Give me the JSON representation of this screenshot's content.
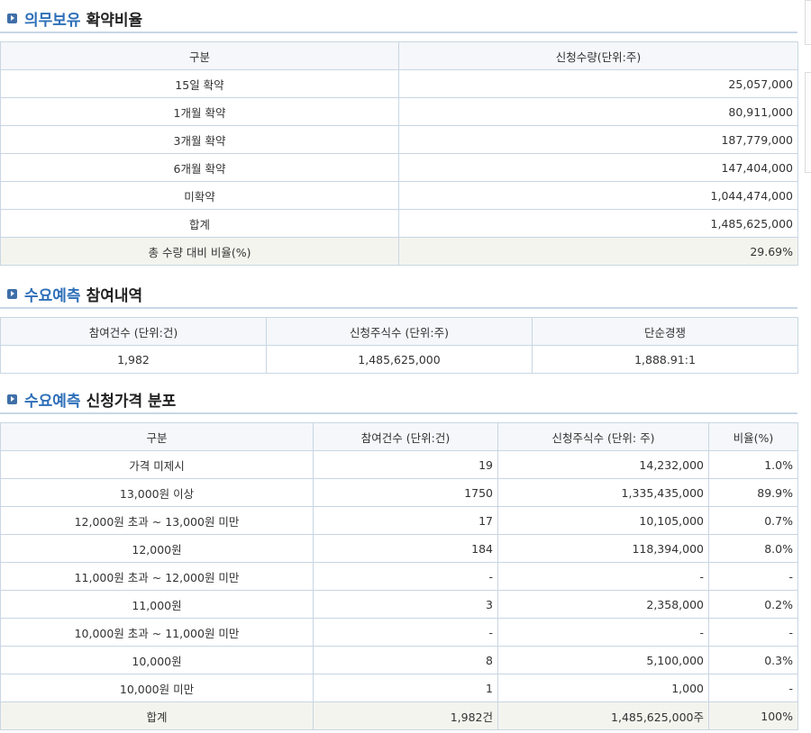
{
  "section1": {
    "title_highlight": "의무보유",
    "title_rest": "확약비율",
    "headers": [
      "구분",
      "신청수량(단위:주)"
    ],
    "rows": [
      {
        "label": "15일 확약",
        "value": "25,057,000"
      },
      {
        "label": "1개월 확약",
        "value": "80,911,000"
      },
      {
        "label": "3개월 확약",
        "value": "187,779,000"
      },
      {
        "label": "6개월 확약",
        "value": "147,404,000"
      },
      {
        "label": "미확약",
        "value": "1,044,474,000"
      },
      {
        "label": "합계",
        "value": "1,485,625,000"
      }
    ],
    "ratio_label": "총 수량 대비 비율(%)",
    "ratio_value": "29.69%"
  },
  "section2": {
    "title_highlight": "수요예측",
    "title_rest": "참여내역",
    "headers": [
      "참여건수 (단위:건)",
      "신청주식수 (단위:주)",
      "단순경쟁"
    ],
    "values": [
      "1,982",
      "1,485,625,000",
      "1,888.91:1"
    ]
  },
  "section3": {
    "title_highlight": "수요예측",
    "title_rest": "신청가격 분포",
    "headers": [
      "구분",
      "참여건수 (단위:건)",
      "신청주식수 (단위: 주)",
      "비율(%)"
    ],
    "rows": [
      {
        "label": "가격 미제시",
        "count": "19",
        "shares": "14,232,000",
        "ratio": "1.0%"
      },
      {
        "label": "13,000원 이상",
        "count": "1750",
        "shares": "1,335,435,000",
        "ratio": "89.9%"
      },
      {
        "label": "12,000원 초과 ~ 13,000원 미만",
        "count": "17",
        "shares": "10,105,000",
        "ratio": "0.7%"
      },
      {
        "label": "12,000원",
        "count": "184",
        "shares": "118,394,000",
        "ratio": "8.0%"
      },
      {
        "label": "11,000원 초과 ~ 12,000원 미만",
        "count": "-",
        "shares": "-",
        "ratio": "-"
      },
      {
        "label": "11,000원",
        "count": "3",
        "shares": "2,358,000",
        "ratio": "0.2%"
      },
      {
        "label": "10,000원 초과 ~ 11,000원 미만",
        "count": "-",
        "shares": "-",
        "ratio": "-"
      },
      {
        "label": "10,000원",
        "count": "8",
        "shares": "5,100,000",
        "ratio": "0.3%"
      },
      {
        "label": "10,000원 미만",
        "count": "1",
        "shares": "1,000",
        "ratio": "-"
      }
    ],
    "total": {
      "label": "합계",
      "count": "1,982건",
      "shares": "1,485,625,000주",
      "ratio": "100%"
    }
  }
}
